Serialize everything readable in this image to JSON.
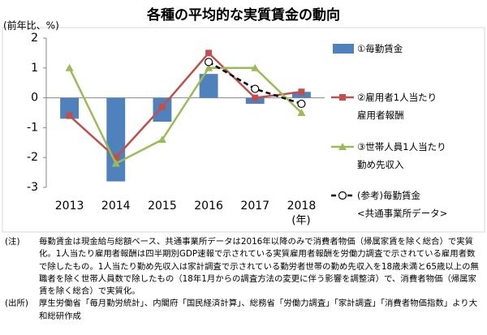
{
  "chart_data": {
    "type": "combo",
    "title": "各種の平均的な実質賃金の動向",
    "y_label": "(前年比、%)",
    "x_unit": "(年)",
    "categories": [
      "2013",
      "2014",
      "2015",
      "2016",
      "2017",
      "2018"
    ],
    "ylim": [
      -3,
      2
    ],
    "yticks": [
      -3,
      -2,
      -1,
      0,
      1,
      2
    ],
    "series": [
      {
        "name": "①毎勤賃金",
        "type": "bar",
        "color": "#4f81bd",
        "values": [
          -0.7,
          -2.8,
          -0.8,
          0.8,
          -0.2,
          0.2
        ]
      },
      {
        "name": "②雇用者1人当たり\n雇用者報酬",
        "type": "line",
        "marker": "square",
        "color": "#c0504d",
        "values": [
          -0.6,
          -2.0,
          -0.3,
          1.5,
          0.0,
          0.2
        ]
      },
      {
        "name": "③世帯人員1人当たり\n勤め先収入",
        "type": "line",
        "marker": "triangle",
        "color": "#9bbb59",
        "values": [
          1.0,
          -2.2,
          -1.4,
          1.0,
          1.0,
          -0.5
        ]
      },
      {
        "name": "(参考)毎勤賃金\n<共通事業所データ>",
        "type": "line",
        "marker": "circle",
        "dashed": true,
        "color": "#000000",
        "values": [
          null,
          null,
          null,
          1.2,
          0.3,
          -0.2
        ]
      }
    ]
  },
  "notes": [
    {
      "label": "(注)",
      "text": "毎勤賃金は現金給与総額ベース、共通事業所データは2016年以降のみで消費者物価（帰属家賃を除く総合）で実質化。1人当たり雇用者報酬は四半期別GDP速報で示されている実質雇用者報酬を労働力調査で示されている雇用者数で除したもの。1人当たり勤め先収入は家計調査で示されている勤労者世帯の勤め先収入を18歳未満と65歳以上の無職者を除く世帯人員数で除したもの（18年1月からの調査方法の変更に伴う影響を調整済）で、消費者物価（帰属家賃を除く総合）で実質化。"
    },
    {
      "label": "(出所)",
      "text": "厚生労働省「毎月勤労統計」、内閣府「国民経済計算」、総務省「労働力調査」「家計調査」「消費者物価指数」より大和総研作成"
    }
  ]
}
